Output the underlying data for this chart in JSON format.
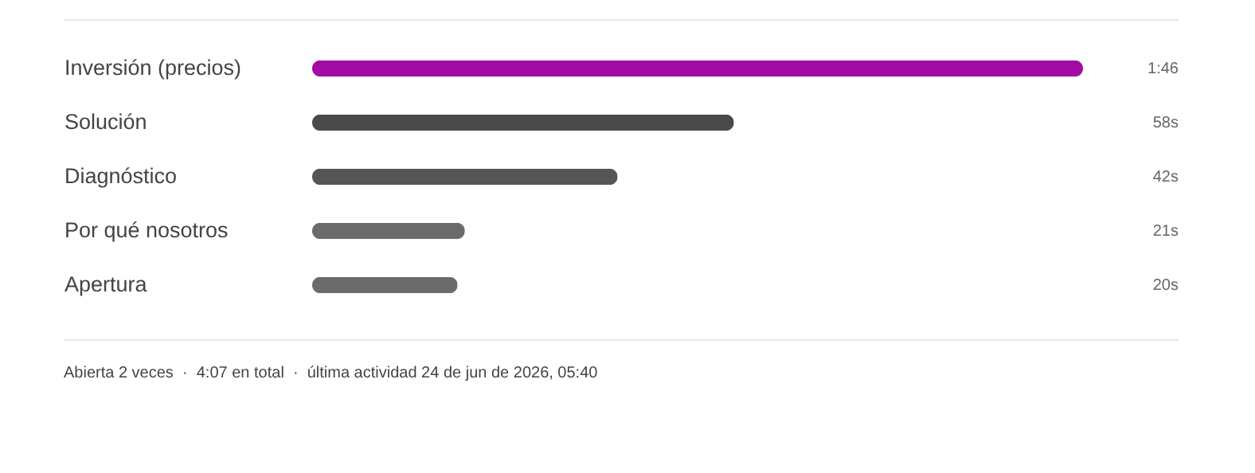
{
  "chart_data": {
    "type": "bar",
    "orientation": "horizontal",
    "categories": [
      "Inversión (precios)",
      "Solución",
      "Diagnóstico",
      "Por qué nosotros",
      "Apertura"
    ],
    "values": [
      106,
      58,
      42,
      21,
      20
    ],
    "colors": [
      "#a20ca5",
      "#4a4a4a",
      "#555555",
      "#6b6b6b",
      "#6b6b6b"
    ],
    "value_labels": [
      "1:46",
      "58s",
      "42s",
      "21s",
      "20s"
    ],
    "annotations": [
      "Abierta 2 veces  ·  4:07 en total  ·  última actividad 24 de jun de 2026, 05:40"
    ]
  }
}
